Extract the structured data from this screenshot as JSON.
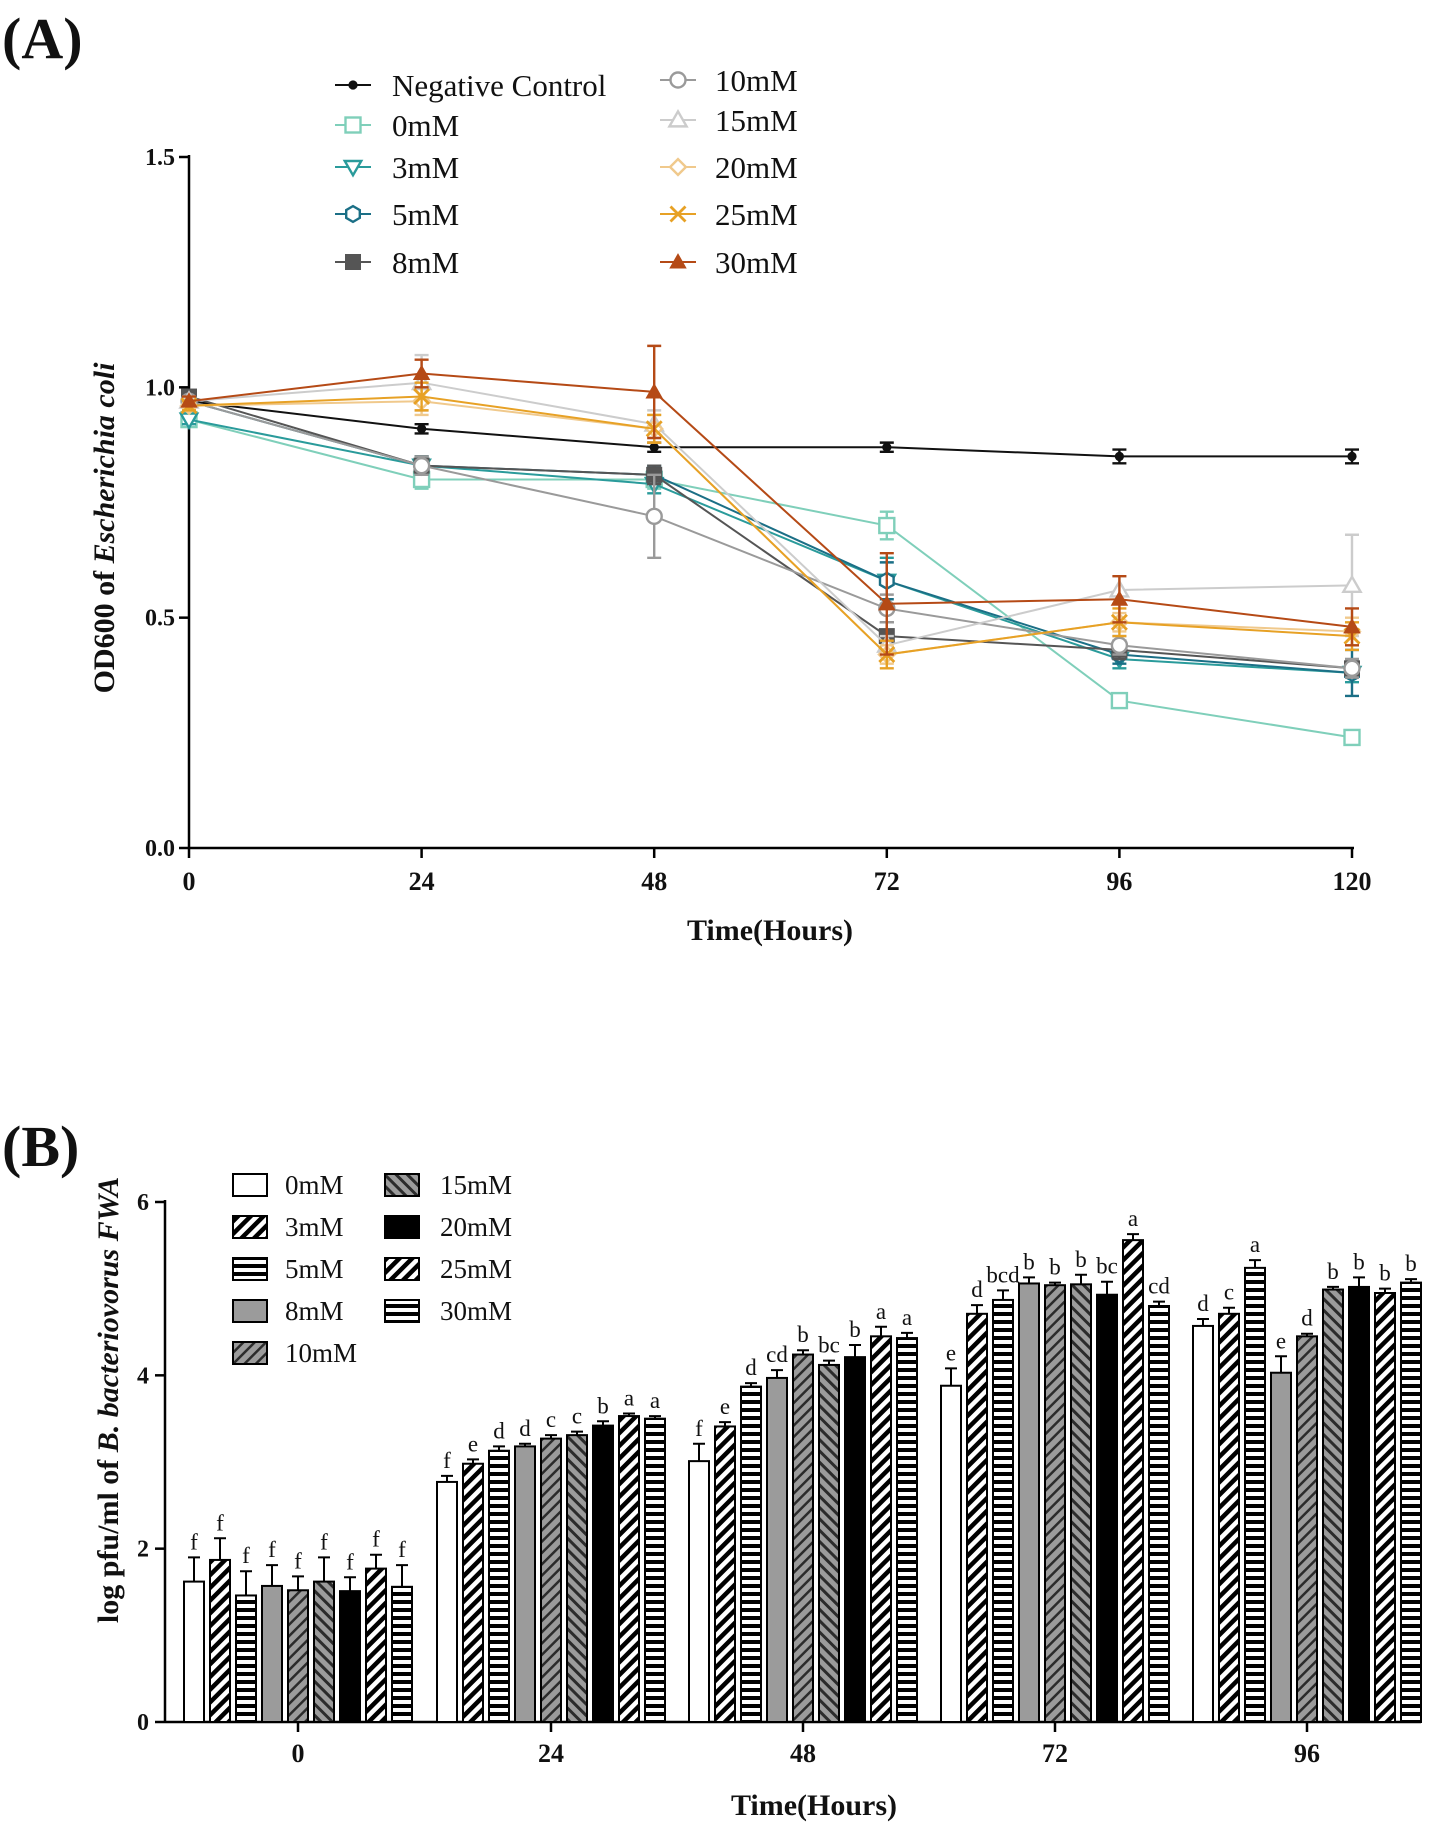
{
  "panel_a_label": "(A)",
  "panel_b_label": "(B)",
  "chart_data": [
    {
      "type": "line",
      "title": "",
      "xlabel": "Time(Hours)",
      "ylabel_prefix": "OD600 of ",
      "ylabel_italic": "Escherichia coli",
      "x": [
        0,
        24,
        48,
        72,
        96,
        120
      ],
      "xlim": [
        0,
        120
      ],
      "ylim": [
        0,
        1.5
      ],
      "yticks": [
        "0.0",
        "0.5",
        "1.0",
        "1.5"
      ],
      "legend_position": "top",
      "series": [
        {
          "name": "Negative Control",
          "color": "#111111",
          "marker": "dot",
          "values": [
            0.97,
            0.91,
            0.87,
            0.87,
            0.85,
            0.85
          ],
          "errors": [
            0.01,
            0.01,
            0.01,
            0.01,
            0.015,
            0.015
          ]
        },
        {
          "name": "0mM",
          "color": "#7fcfba",
          "marker": "square-open",
          "values": [
            0.93,
            0.8,
            0.8,
            0.7,
            0.32,
            0.24
          ],
          "errors": [
            0.01,
            0.02,
            0.02,
            0.03,
            0.01,
            0.01
          ]
        },
        {
          "name": "3mM",
          "color": "#2a9b9b",
          "marker": "triangle-down-open",
          "values": [
            0.93,
            0.83,
            0.79,
            0.58,
            0.41,
            0.38
          ],
          "errors": [
            0.01,
            0.02,
            0.02,
            0.05,
            0.02,
            0.02
          ]
        },
        {
          "name": "5mM",
          "color": "#1b6f86",
          "marker": "hexagon-open",
          "values": [
            0.97,
            0.83,
            0.81,
            0.58,
            0.42,
            0.38
          ],
          "errors": [
            0.01,
            0.02,
            0.02,
            0.04,
            0.02,
            0.05
          ]
        },
        {
          "name": "8mM",
          "color": "#555555",
          "marker": "square-filled",
          "values": [
            0.98,
            0.83,
            0.81,
            0.46,
            0.43,
            0.39
          ],
          "errors": [
            0.01,
            0.02,
            0.02,
            0.03,
            0.02,
            0.02
          ]
        },
        {
          "name": "10mM",
          "color": "#9a9a9a",
          "marker": "circle-open",
          "values": [
            0.97,
            0.83,
            0.72,
            0.52,
            0.44,
            0.39
          ],
          "errors": [
            0.01,
            0.02,
            0.09,
            0.03,
            0.02,
            0.02
          ]
        },
        {
          "name": "15mM",
          "color": "#cccccc",
          "marker": "triangle-up-open",
          "values": [
            0.97,
            1.01,
            0.92,
            0.44,
            0.56,
            0.57
          ],
          "errors": [
            0.01,
            0.06,
            0.03,
            0.02,
            0.03,
            0.11
          ]
        },
        {
          "name": "20mM",
          "color": "#f0c98c",
          "marker": "diamond-open",
          "values": [
            0.96,
            0.97,
            0.91,
            0.42,
            0.49,
            0.47
          ],
          "errors": [
            0.01,
            0.03,
            0.03,
            0.02,
            0.02,
            0.03
          ]
        },
        {
          "name": "25mM",
          "color": "#e7a125",
          "marker": "x",
          "values": [
            0.96,
            0.98,
            0.91,
            0.42,
            0.49,
            0.46
          ],
          "errors": [
            0.01,
            0.03,
            0.03,
            0.03,
            0.03,
            0.03
          ]
        },
        {
          "name": "30mM",
          "color": "#b54a16",
          "marker": "triangle-up-filled",
          "values": [
            0.97,
            1.03,
            0.99,
            0.53,
            0.54,
            0.48
          ],
          "errors": [
            0.01,
            0.03,
            0.1,
            0.11,
            0.05,
            0.04
          ]
        }
      ]
    },
    {
      "type": "bar",
      "title": "",
      "xlabel": "Time(Hours)",
      "ylabel_prefix": "log pfu/ml of ",
      "ylabel_italic": "B. bacteriovorus FWA",
      "categories": [
        "0",
        "24",
        "48",
        "72",
        "96"
      ],
      "ylim": [
        0,
        6
      ],
      "yticks": [
        "0",
        "2",
        "4",
        "6"
      ],
      "legend_position": "top-left",
      "series": [
        {
          "name": "0mM",
          "pattern": "open",
          "values": [
            1.62,
            2.77,
            3.01,
            3.88,
            4.57
          ],
          "errors": [
            0.28,
            0.07,
            0.2,
            0.2,
            0.08
          ],
          "letters": [
            "f",
            "f",
            "f",
            "e",
            "d"
          ]
        },
        {
          "name": "3mM",
          "pattern": "diag-bold",
          "values": [
            1.87,
            2.98,
            3.41,
            4.71,
            4.71
          ],
          "errors": [
            0.25,
            0.05,
            0.05,
            0.1,
            0.07
          ],
          "letters": [
            "f",
            "e",
            "e",
            "d",
            "c"
          ]
        },
        {
          "name": "5mM",
          "pattern": "horizontal",
          "values": [
            1.46,
            3.13,
            3.87,
            4.87,
            5.24
          ],
          "errors": [
            0.28,
            0.05,
            0.04,
            0.11,
            0.09
          ],
          "letters": [
            "f",
            "d",
            "d",
            "bcd",
            "a"
          ]
        },
        {
          "name": "8mM",
          "pattern": "gray",
          "values": [
            1.57,
            3.18,
            3.97,
            5.06,
            4.03
          ],
          "errors": [
            0.24,
            0.03,
            0.09,
            0.07,
            0.19
          ],
          "letters": [
            "f",
            "d",
            "cd",
            "b",
            "e"
          ]
        },
        {
          "name": "10mM",
          "pattern": "gray-diag",
          "values": [
            1.52,
            3.27,
            4.24,
            5.04,
            4.45
          ],
          "errors": [
            0.16,
            0.04,
            0.05,
            0.03,
            0.03
          ],
          "letters": [
            "f",
            "c",
            "b",
            "b",
            "d"
          ]
        },
        {
          "name": "15mM",
          "pattern": "gray-diag-dark",
          "values": [
            1.62,
            3.31,
            4.12,
            5.05,
            4.99
          ],
          "errors": [
            0.28,
            0.04,
            0.05,
            0.11,
            0.03
          ],
          "letters": [
            "f",
            "c",
            "bc",
            "b",
            "b"
          ]
        },
        {
          "name": "20mM",
          "pattern": "black",
          "values": [
            1.51,
            3.42,
            4.21,
            4.93,
            5.02
          ],
          "errors": [
            0.16,
            0.05,
            0.14,
            0.15,
            0.11
          ],
          "letters": [
            "f",
            "b",
            "b",
            "bc",
            "b"
          ]
        },
        {
          "name": "25mM",
          "pattern": "diag-bold",
          "values": [
            1.77,
            3.53,
            4.45,
            5.56,
            4.95
          ],
          "errors": [
            0.16,
            0.03,
            0.11,
            0.07,
            0.05
          ],
          "letters": [
            "f",
            "a",
            "a",
            "a",
            "b"
          ]
        },
        {
          "name": "30mM",
          "pattern": "horizontal",
          "values": [
            1.56,
            3.5,
            4.43,
            4.8,
            5.07
          ],
          "errors": [
            0.25,
            0.03,
            0.06,
            0.05,
            0.04
          ],
          "letters": [
            "f",
            "a",
            "a",
            "cd",
            "b"
          ]
        }
      ]
    }
  ]
}
